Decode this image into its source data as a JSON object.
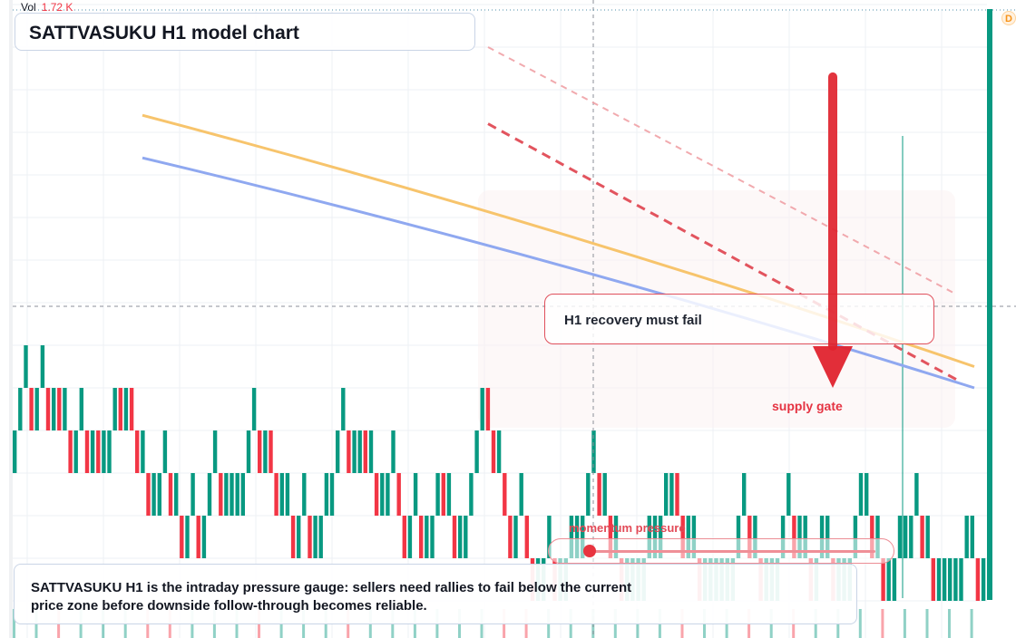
{
  "header": {
    "vol_label": "Vol",
    "vol_value": "1.72 K"
  },
  "title": "SATTVASUKU H1 model chart",
  "badge": "D",
  "callout": {
    "label": "H1 recovery must fail"
  },
  "zone_label": "supply gate",
  "momentum": {
    "label": "momentum pressure",
    "level": 0.12
  },
  "note": "SATTVASUKU H1 is the intraday pressure gauge: sellers need rallies to fail below the current price zone before downside follow-through becomes reliable.",
  "colors": {
    "up": "#089981",
    "down": "#f23645",
    "ma_fast": "#f7c46c",
    "ma_slow": "#8fa8f0",
    "arrow": "#e0232e",
    "trend_dashed": "#e2545e"
  },
  "chart_data": {
    "type": "renko",
    "box_size": 1,
    "price_range": [
      0,
      13
    ],
    "brick_levels": [
      3,
      4,
      4,
      3,
      4,
      4,
      3,
      4,
      3,
      3,
      2,
      3,
      3,
      2,
      3,
      2,
      2,
      3,
      4,
      3,
      4,
      3,
      2,
      2,
      1,
      1,
      2,
      2,
      1,
      1,
      0,
      1,
      1,
      0,
      1,
      2,
      2,
      1,
      1,
      1,
      1,
      2,
      3,
      3,
      2,
      3,
      2,
      1,
      1,
      1,
      0,
      1,
      1,
      0,
      0,
      1,
      1,
      2,
      3,
      3,
      2,
      2,
      3,
      2,
      2,
      1,
      1,
      2,
      2,
      1,
      0,
      1,
      1,
      0,
      0,
      1,
      2,
      1,
      1,
      0,
      0,
      1,
      2,
      3,
      4,
      3,
      2,
      2,
      1,
      0,
      1,
      1,
      0,
      -1,
      -1,
      0,
      0,
      -1,
      -1,
      0,
      0,
      0,
      1,
      2,
      2,
      1,
      1,
      0,
      0,
      -1,
      -1,
      -1,
      -1,
      0,
      0,
      0,
      1,
      1,
      2,
      1,
      0,
      0,
      0,
      -1,
      -1,
      -1,
      -1,
      -1,
      -1,
      0,
      1,
      1,
      0,
      0,
      -1,
      -1,
      -1,
      0,
      1,
      1,
      0,
      0,
      0,
      -1,
      0,
      0,
      0,
      -1,
      -1,
      -1,
      0,
      1,
      1,
      1,
      0,
      0,
      -1,
      -1,
      0,
      0,
      0,
      1,
      1,
      0,
      0,
      -1,
      -1,
      -1,
      -1,
      -1,
      0,
      0,
      0,
      -1,
      -1
    ],
    "moving_averages": [
      {
        "color": "#f7c46c",
        "start": 10.4,
        "end": 4.5
      },
      {
        "color": "#8fa8f0",
        "start": 9.4,
        "end": 4.0
      }
    ],
    "trendlines": [
      {
        "style": "dashed-light",
        "start": 12.0,
        "end": 6.2
      },
      {
        "style": "dashed",
        "start": 10.2,
        "end": 4.2
      }
    ],
    "arrow": {
      "from": 11.3,
      "to": 4.0
    },
    "current_price": 7.6
  }
}
